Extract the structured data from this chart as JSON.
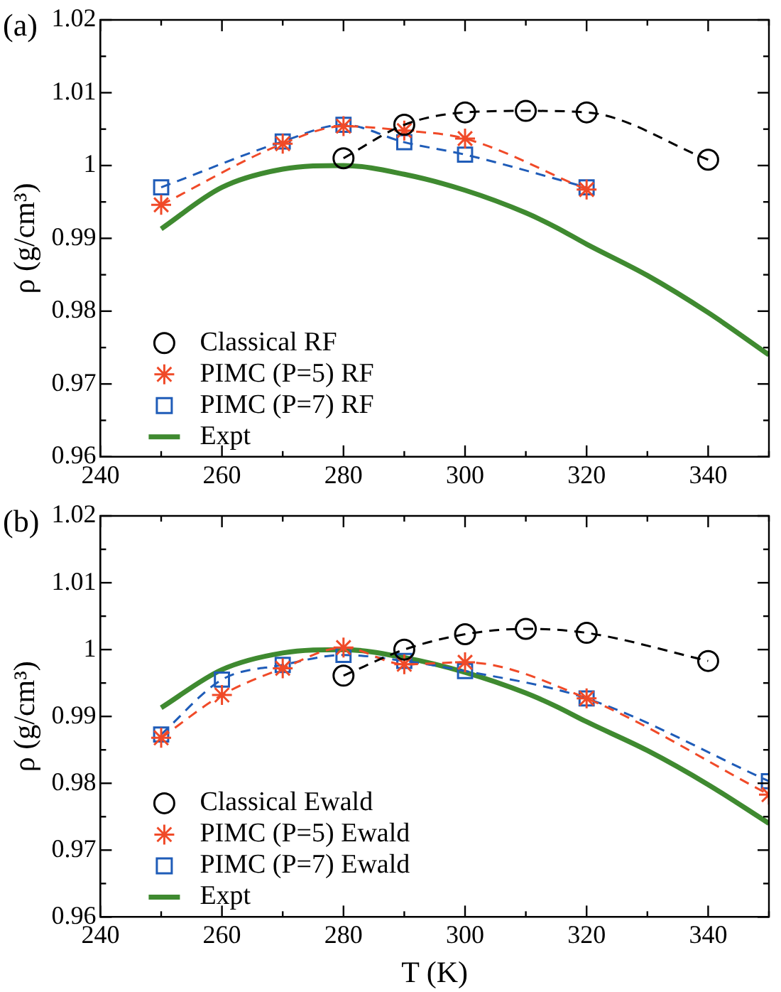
{
  "chart_data": [
    {
      "type": "line",
      "title": "(a)",
      "ylabel": "ρ (g/cm³)",
      "xlim": [
        240,
        350
      ],
      "ylim": [
        0.96,
        1.02
      ],
      "grid": false,
      "legend": "bottom left",
      "xticks": [
        240,
        {
          "value": 250,
          "label": null
        },
        260,
        {
          "value": 270,
          "label": null
        },
        280,
        {
          "value": 290,
          "label": null
        },
        300,
        {
          "value": 310,
          "label": null
        },
        320,
        {
          "value": 330,
          "label": null
        },
        340,
        {
          "value": 350,
          "label": null
        }
      ],
      "yticks": [
        0.96,
        {
          "value": 0.965,
          "label": null
        },
        0.97,
        {
          "value": 0.975,
          "label": null
        },
        0.98,
        {
          "value": 0.985,
          "label": null
        },
        0.99,
        {
          "value": 0.995,
          "label": null
        },
        1,
        {
          "value": 1.005,
          "label": null
        },
        1.01,
        {
          "value": 1.015,
          "label": null
        },
        1.02
      ],
      "series": [
        {
          "name": "Classical RF",
          "color": "#000000",
          "marker": "circle",
          "line_style": "dashed",
          "x": [
            280,
            290,
            300,
            310,
            320,
            340
          ],
          "values": [
            1.001,
            1.0056,
            1.0073,
            1.0075,
            1.0073,
            1.0008
          ]
        },
        {
          "name": "PIMC (P=5) RF",
          "color": "#f04a28",
          "marker": "cross",
          "line_style": "dashed",
          "x": [
            250,
            270,
            280,
            290,
            300,
            320
          ],
          "values": [
            0.9946,
            1.003,
            1.0054,
            1.0048,
            1.0037,
            0.9967
          ]
        },
        {
          "name": "PIMC (P=7) RF",
          "color": "#1f5cb8",
          "marker": "square",
          "line_style": "dashed",
          "x": [
            250,
            270,
            280,
            290,
            300,
            320
          ],
          "values": [
            0.997,
            1.0033,
            1.0056,
            1.0032,
            1.0015,
            0.997
          ]
        },
        {
          "name": "Expt",
          "color": "#3f8a30",
          "marker": "none",
          "line_style": "solid",
          "x": [
            250,
            260,
            270,
            280,
            290,
            300,
            310,
            315,
            320,
            330,
            340,
            350
          ],
          "values": [
            0.9913,
            0.997,
            0.9995,
            1.0,
            0.9988,
            0.9966,
            0.9935,
            0.9915,
            0.9892,
            0.9849,
            0.9798,
            0.974
          ]
        }
      ]
    },
    {
      "type": "line",
      "title": "(b)",
      "xlabel": "T (K)",
      "ylabel": "ρ (g/cm³)",
      "xlim": [
        240,
        350
      ],
      "ylim": [
        0.96,
        1.02
      ],
      "grid": false,
      "legend": "bottom left",
      "xticks": [
        240,
        {
          "value": 250,
          "label": null
        },
        260,
        {
          "value": 270,
          "label": null
        },
        280,
        {
          "value": 290,
          "label": null
        },
        300,
        {
          "value": 310,
          "label": null
        },
        320,
        {
          "value": 330,
          "label": null
        },
        340,
        {
          "value": 350,
          "label": null
        }
      ],
      "yticks": [
        0.96,
        {
          "value": 0.965,
          "label": null
        },
        0.97,
        {
          "value": 0.975,
          "label": null
        },
        0.98,
        {
          "value": 0.985,
          "label": null
        },
        0.99,
        {
          "value": 0.995,
          "label": null
        },
        1,
        {
          "value": 1.005,
          "label": null
        },
        1.01,
        {
          "value": 1.015,
          "label": null
        },
        1.02
      ],
      "series": [
        {
          "name": "Classical Ewald",
          "color": "#000000",
          "marker": "circle",
          "line_style": "dashed",
          "x": [
            280,
            290,
            300,
            310,
            320,
            340
          ],
          "values": [
            0.9961,
            1.0,
            1.0023,
            1.0031,
            1.0025,
            0.9983
          ]
        },
        {
          "name": "PIMC (P=5) Ewald",
          "color": "#f04a28",
          "marker": "cross",
          "line_style": "dashed",
          "x": [
            250,
            260,
            270,
            280,
            290,
            300,
            320,
            350
          ],
          "values": [
            0.9868,
            0.9932,
            0.9972,
            1.0003,
            0.9978,
            0.9981,
            0.9927,
            0.9783
          ]
        },
        {
          "name": "PIMC (P=7) Ewald",
          "color": "#1f5cb8",
          "marker": "square",
          "line_style": "dashed",
          "x": [
            250,
            260,
            270,
            280,
            290,
            300,
            320,
            350
          ],
          "values": [
            0.9873,
            0.9955,
            0.9977,
            0.9992,
            0.9983,
            0.9968,
            0.9927,
            0.9803
          ]
        },
        {
          "name": "Expt",
          "color": "#3f8a30",
          "marker": "none",
          "line_style": "solid",
          "x": [
            250,
            260,
            270,
            280,
            290,
            300,
            310,
            315,
            320,
            330,
            340,
            350
          ],
          "values": [
            0.9913,
            0.997,
            0.9995,
            1.0,
            0.9988,
            0.9966,
            0.9935,
            0.9915,
            0.9892,
            0.9849,
            0.9798,
            0.974
          ]
        }
      ]
    }
  ]
}
